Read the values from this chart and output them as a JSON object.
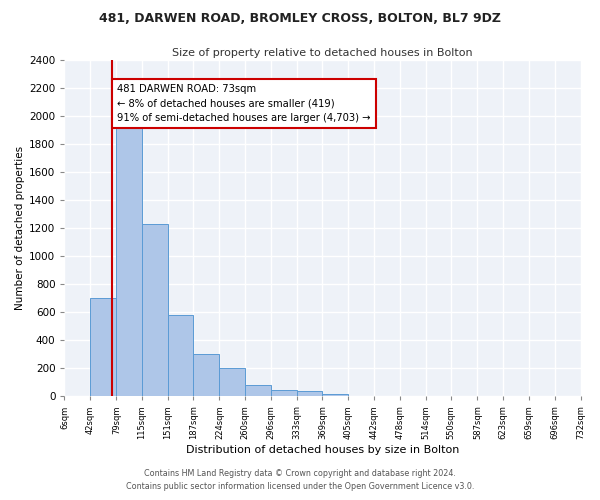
{
  "title": "481, DARWEN ROAD, BROMLEY CROSS, BOLTON, BL7 9DZ",
  "subtitle": "Size of property relative to detached houses in Bolton",
  "xlabel": "Distribution of detached houses by size in Bolton",
  "ylabel": "Number of detached properties",
  "bar_heights": [
    5,
    700,
    1950,
    1230,
    580,
    305,
    200,
    80,
    45,
    40,
    15,
    5,
    3,
    2,
    1,
    1,
    0,
    0,
    0,
    0
  ],
  "bin_edges": [
    6,
    42,
    79,
    115,
    151,
    187,
    224,
    260,
    296,
    333,
    369,
    405,
    442,
    478,
    514,
    550,
    587,
    623,
    659,
    696,
    732
  ],
  "tick_labels": [
    "6sqm",
    "42sqm",
    "79sqm",
    "115sqm",
    "151sqm",
    "187sqm",
    "224sqm",
    "260sqm",
    "296sqm",
    "333sqm",
    "369sqm",
    "405sqm",
    "442sqm",
    "478sqm",
    "514sqm",
    "550sqm",
    "587sqm",
    "623sqm",
    "659sqm",
    "696sqm",
    "732sqm"
  ],
  "bar_color": "#aec6e8",
  "bar_edge_color": "#5b9bd5",
  "ylim": [
    0,
    2400
  ],
  "yticks": [
    0,
    200,
    400,
    600,
    800,
    1000,
    1200,
    1400,
    1600,
    1800,
    2000,
    2200,
    2400
  ],
  "vline_x": 73,
  "vline_color": "#cc0000",
  "annotation_text": "481 DARWEN ROAD: 73sqm\n← 8% of detached houses are smaller (419)\n91% of semi-detached houses are larger (4,703) →",
  "annotation_box_color": "#ffffff",
  "annotation_box_edge": "#cc0000",
  "footer_line1": "Contains HM Land Registry data © Crown copyright and database right 2024.",
  "footer_line2": "Contains public sector information licensed under the Open Government Licence v3.0.",
  "background_color": "#eef2f8",
  "grid_color": "#ffffff",
  "fig_bg_color": "#ffffff"
}
